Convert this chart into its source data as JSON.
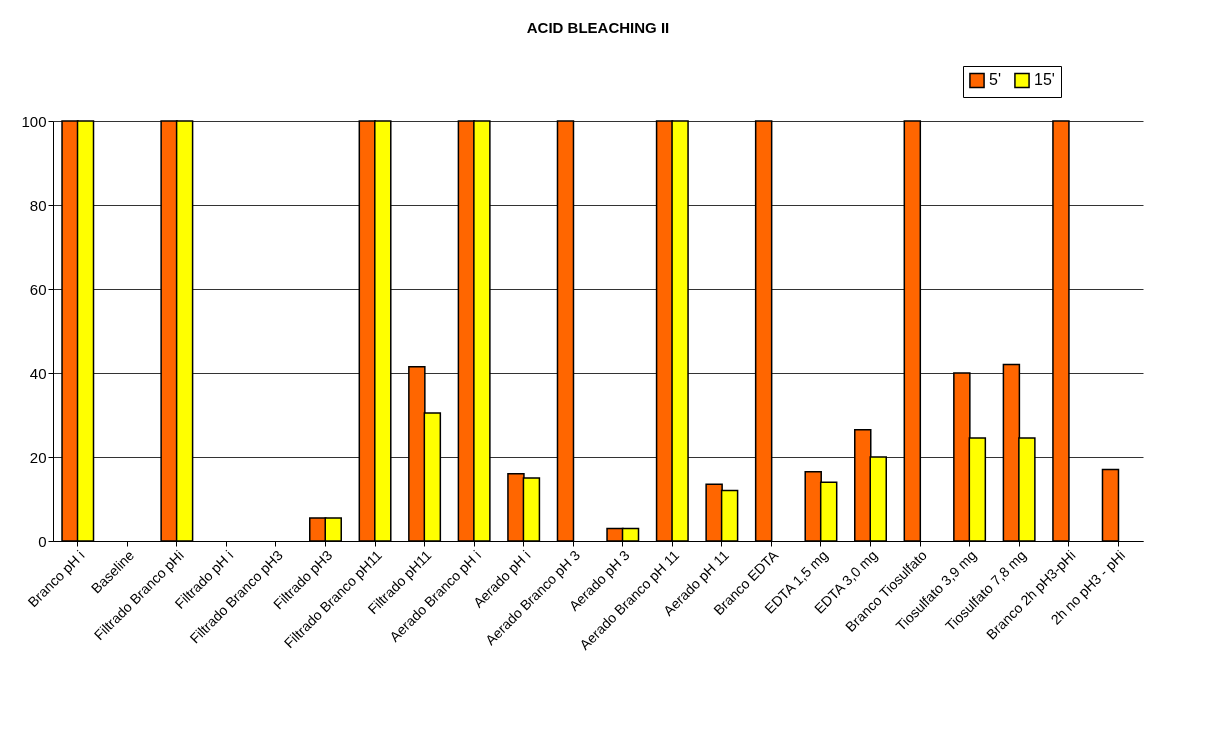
{
  "chart_data": {
    "type": "bar",
    "title": "ACID BLEACHING II",
    "categories": [
      "Branco pH i",
      "Baseline",
      "Filtrado Branco pHi",
      "Filtrado pH i",
      "Filtrado Branco pH3",
      "Filtrado pH3",
      "Filtrado Branco pH11",
      "Filtrado pH11",
      "Aerado Branco pH i",
      "Aerado pH i",
      "Aerado Branco pH 3",
      "Aerado pH 3",
      "Aerado Branco pH 11",
      "Aerado pH 11",
      "Branco EDTA",
      "EDTA 1,5 mg",
      "EDTA 3,0 mg",
      "Branco Tiosulfato",
      "Tiosulfato 3,9 mg",
      "Tiosulfato 7,8 mg",
      "Branco 2h pH3-pHi",
      "2h no pH3 - pHi"
    ],
    "series": [
      {
        "name": "5'",
        "color": "#ff6600",
        "values": [
          100,
          null,
          100,
          null,
          null,
          5.5,
          100,
          41.5,
          100,
          16,
          100,
          3,
          100,
          13.5,
          100,
          16.5,
          26.5,
          100,
          40,
          42,
          100,
          17
        ]
      },
      {
        "name": "15'",
        "color": "#ffff00",
        "values": [
          100,
          null,
          100,
          null,
          null,
          5.5,
          100,
          30.5,
          100,
          15,
          null,
          3,
          100,
          12,
          null,
          14,
          20,
          null,
          24.5,
          24.5,
          null,
          null
        ]
      }
    ],
    "ylim": [
      0,
      100
    ],
    "yticks": [
      0,
      20,
      40,
      60,
      80,
      100
    ],
    "grid": "y",
    "legend": "top right"
  }
}
